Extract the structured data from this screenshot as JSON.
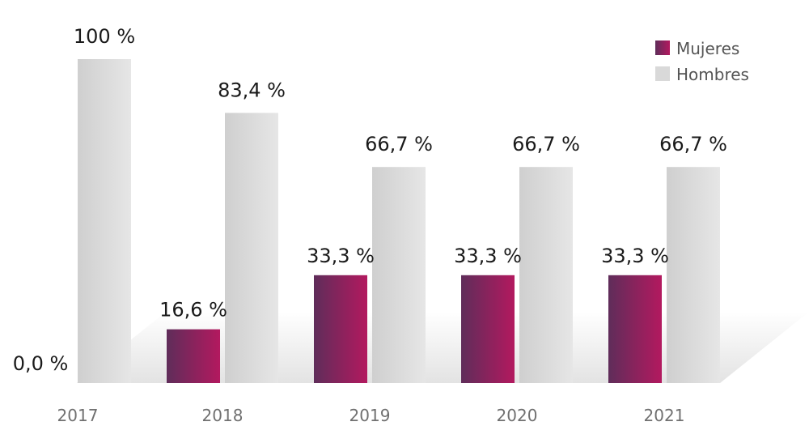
{
  "chart_data": {
    "type": "bar",
    "categories": [
      "2017",
      "2018",
      "2019",
      "2020",
      "2021"
    ],
    "series": [
      {
        "name": "Mujeres",
        "values": [
          0.0,
          16.6,
          33.3,
          33.3,
          33.3
        ],
        "labels": [
          "0,0 %",
          "16,6 %",
          "33,3 %",
          "33,3 %",
          "33,3 %"
        ],
        "color": "#b3195f",
        "color_dark": "#5f2d5a"
      },
      {
        "name": "Hombres",
        "values": [
          100,
          83.4,
          66.7,
          66.7,
          66.7
        ],
        "labels": [
          "100 %",
          "83,4 %",
          "66,7 %",
          "66,7 %",
          "66,7 %"
        ],
        "color": "#d9d9d9"
      }
    ],
    "ylim": [
      0,
      100
    ],
    "legend_position": "top-right",
    "title": "",
    "xlabel": "",
    "ylabel": ""
  }
}
